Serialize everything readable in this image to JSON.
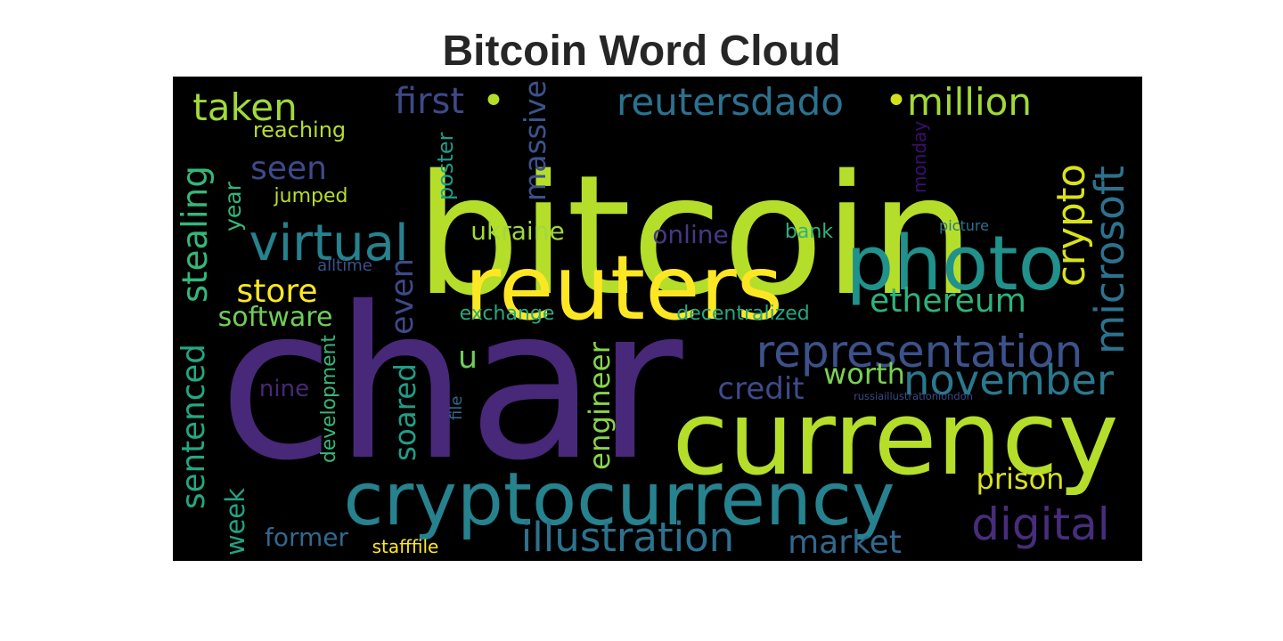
{
  "title": "Bitcoin Word Cloud",
  "words": [
    {
      "key": "bitcoin",
      "text": "bitcoin",
      "color": "#b5de2b"
    },
    {
      "key": "char",
      "text": "char",
      "color": "#482878"
    },
    {
      "key": "reuters",
      "text": "reuters",
      "color": "#fde725"
    },
    {
      "key": "currency",
      "text": "currency",
      "color": "#b5de2b"
    },
    {
      "key": "cryptocurrency",
      "text": "cryptocurrency",
      "color": "#26828e"
    },
    {
      "key": "photo",
      "text": "photo",
      "color": "#21918c"
    },
    {
      "key": "representation",
      "text": "representation",
      "color": "#3b528b"
    },
    {
      "key": "virtual",
      "text": "virtual",
      "color": "#26828e"
    },
    {
      "key": "microsoft",
      "text": "microsoft",
      "color": "#2c728e"
    },
    {
      "key": "november",
      "text": "november",
      "color": "#2a788e"
    },
    {
      "key": "illustration",
      "text": "illustration",
      "color": "#2c728e"
    },
    {
      "key": "digital",
      "text": "digital",
      "color": "#472d7b"
    },
    {
      "key": "reutersdado",
      "text": "reutersdado",
      "color": "#2c728e"
    },
    {
      "key": "million",
      "text": "million",
      "color": "#a0da39"
    },
    {
      "key": "taken",
      "text": "taken",
      "color": "#a0da39"
    },
    {
      "key": "first",
      "text": "first",
      "color": "#3e4989"
    },
    {
      "key": "ethereum",
      "text": "ethereum",
      "color": "#2db27d"
    },
    {
      "key": "crypto",
      "text": "crypto",
      "color": "#d8e219"
    },
    {
      "key": "store",
      "text": "store",
      "color": "#fde725"
    },
    {
      "key": "software",
      "text": "software",
      "color": "#6ece58"
    },
    {
      "key": "seen",
      "text": "seen",
      "color": "#3e4a89"
    },
    {
      "key": "year",
      "text": "year",
      "color": "#35b779"
    },
    {
      "key": "worth",
      "text": "worth",
      "color": "#7ad151"
    },
    {
      "key": "credit",
      "text": "credit",
      "color": "#3e4a89"
    },
    {
      "key": "market",
      "text": "market",
      "color": "#31688e"
    },
    {
      "key": "prison",
      "text": "prison",
      "color": "#d8e219"
    },
    {
      "key": "week",
      "text": "week",
      "color": "#20a486"
    },
    {
      "key": "former",
      "text": "former",
      "color": "#31688e"
    },
    {
      "key": "sentenced",
      "text": "sentenced",
      "color": "#22a884"
    },
    {
      "key": "stealing",
      "text": "stealing",
      "color": "#35b779"
    },
    {
      "key": "ukraine",
      "text": "ukraine",
      "color": "#a0da39"
    },
    {
      "key": "online",
      "text": "online",
      "color": "#443983"
    },
    {
      "key": "massive",
      "text": "massive",
      "color": "#3b528b"
    },
    {
      "key": "nine",
      "text": "nine",
      "color": "#482878"
    },
    {
      "key": "u",
      "text": "u",
      "color": "#6ece58"
    },
    {
      "key": "engineer",
      "text": "engineer",
      "color": "#86d549"
    },
    {
      "key": "soared",
      "text": "soared",
      "color": "#1f9e89"
    },
    {
      "key": "even",
      "text": "even",
      "color": "#3e4989"
    },
    {
      "key": "reaching",
      "text": "reaching",
      "color": "#b5de2b"
    },
    {
      "key": "jumped",
      "text": "jumped",
      "color": "#b5de2b"
    },
    {
      "key": "poster",
      "text": "poster",
      "color": "#1f9e89"
    },
    {
      "key": "exchange",
      "text": "exchange",
      "color": "#25ab82"
    },
    {
      "key": "decentralized",
      "text": "decentralized",
      "color": "#22a884"
    },
    {
      "key": "bank",
      "text": "bank",
      "color": "#2db27d"
    },
    {
      "key": "alltime",
      "text": "alltime",
      "color": "#3b528b"
    },
    {
      "key": "picture",
      "text": "picture",
      "color": "#2c728e"
    },
    {
      "key": "monday",
      "text": "monday",
      "color": "#3b0f70"
    },
    {
      "key": "development",
      "text": "development",
      "color": "#35b779"
    },
    {
      "key": "file",
      "text": "file",
      "color": "#31688e"
    },
    {
      "key": "stafffile",
      "text": "stafffile",
      "color": "#fde725"
    },
    {
      "key": "russiaillustrationlondon",
      "text": "russiaillustrationlondon",
      "color": "#3e4989"
    },
    {
      "key": "dot1",
      "text": "•",
      "color": "#b5de2b"
    },
    {
      "key": "dot2",
      "text": "•",
      "color": "#d0e11c"
    }
  ]
}
